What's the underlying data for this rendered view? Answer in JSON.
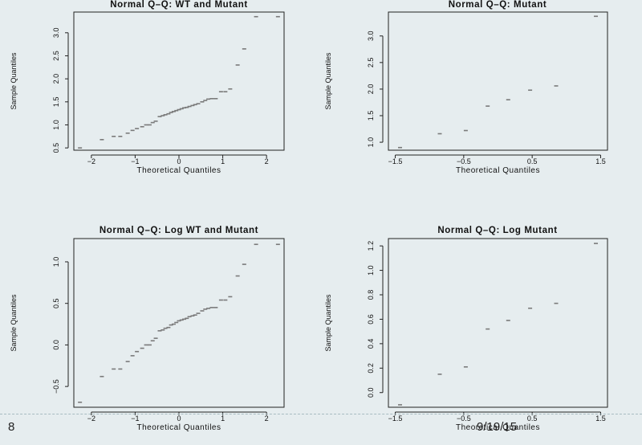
{
  "slide": {
    "number": "8",
    "date": "9/19/15"
  },
  "colors": {
    "background": "#e6edef",
    "point": "#7a7a7a",
    "axis": "#222222"
  },
  "chart_data": [
    {
      "type": "scatter",
      "title": "Normal Q–Q: WT and Mutant",
      "xlabel": "Theoretical Quantiles",
      "ylabel": "Sample Quantiles",
      "xlim": [
        -2.4,
        2.4
      ],
      "ylim": [
        0.45,
        3.45
      ],
      "xticks": [
        -2,
        -1,
        0,
        1,
        2
      ],
      "yticks": [
        0.5,
        1.0,
        1.5,
        2.0,
        2.5,
        3.0
      ],
      "x": [
        -2.26,
        -1.76,
        -1.49,
        -1.34,
        -1.17,
        -1.06,
        -0.96,
        -0.84,
        -0.75,
        -0.67,
        -0.6,
        -0.53,
        -0.44,
        -0.37,
        -0.31,
        -0.24,
        -0.18,
        -0.12,
        -0.06,
        0.0,
        0.06,
        0.12,
        0.18,
        0.24,
        0.31,
        0.37,
        0.44,
        0.53,
        0.6,
        0.67,
        0.75,
        0.84,
        0.96,
        1.06,
        1.17,
        1.34,
        1.49,
        1.76,
        2.26
      ],
      "y": [
        0.5,
        0.68,
        0.75,
        0.75,
        0.82,
        0.88,
        0.92,
        0.96,
        1.0,
        1.0,
        1.05,
        1.08,
        1.18,
        1.2,
        1.22,
        1.24,
        1.27,
        1.29,
        1.31,
        1.33,
        1.35,
        1.37,
        1.38,
        1.4,
        1.42,
        1.44,
        1.46,
        1.5,
        1.53,
        1.56,
        1.57,
        1.57,
        1.72,
        1.72,
        1.78,
        2.3,
        2.65,
        3.35,
        3.35
      ]
    },
    {
      "type": "scatter",
      "title": "Normal Q–Q: Mutant",
      "xlabel": "Theoretical Quantiles",
      "ylabel": "Sample Quantiles",
      "xlim": [
        -1.6,
        1.6
      ],
      "ylim": [
        0.85,
        3.45
      ],
      "xticks": [
        -1.5,
        -0.5,
        0.5,
        1.5
      ],
      "yticks": [
        1.0,
        1.5,
        2.0,
        2.5,
        3.0
      ],
      "x": [
        -1.43,
        -0.85,
        -0.47,
        -0.15,
        0.15,
        0.47,
        0.85,
        1.43
      ],
      "y": [
        0.9,
        1.16,
        1.22,
        1.68,
        1.8,
        1.98,
        2.06,
        3.37
      ]
    },
    {
      "type": "scatter",
      "title": "Normal Q–Q: Log WT and Mutant",
      "xlabel": "Theoretical Quantiles",
      "ylabel": "Sample Quantiles",
      "xlim": [
        -2.4,
        2.4
      ],
      "ylim": [
        -0.75,
        1.28
      ],
      "xticks": [
        -2,
        -1,
        0,
        1,
        2
      ],
      "yticks": [
        -0.5,
        0.0,
        0.5,
        1.0
      ],
      "x": [
        -2.26,
        -1.76,
        -1.49,
        -1.34,
        -1.17,
        -1.06,
        -0.96,
        -0.84,
        -0.75,
        -0.67,
        -0.6,
        -0.53,
        -0.44,
        -0.37,
        -0.31,
        -0.24,
        -0.18,
        -0.12,
        -0.06,
        0.0,
        0.06,
        0.12,
        0.18,
        0.24,
        0.31,
        0.37,
        0.44,
        0.53,
        0.6,
        0.67,
        0.75,
        0.84,
        0.96,
        1.06,
        1.17,
        1.34,
        1.49,
        1.76,
        2.26
      ],
      "y": [
        -0.69,
        -0.38,
        -0.29,
        -0.29,
        -0.2,
        -0.13,
        -0.08,
        -0.04,
        0.0,
        0.0,
        0.05,
        0.08,
        0.17,
        0.18,
        0.2,
        0.21,
        0.24,
        0.25,
        0.27,
        0.29,
        0.3,
        0.31,
        0.32,
        0.34,
        0.35,
        0.36,
        0.38,
        0.41,
        0.43,
        0.44,
        0.45,
        0.45,
        0.54,
        0.54,
        0.58,
        0.83,
        0.97,
        1.21,
        1.21
      ]
    },
    {
      "type": "scatter",
      "title": "Normal Q–Q: Log Mutant",
      "xlabel": "Theoretical Quantiles",
      "ylabel": "Sample Quantiles",
      "xlim": [
        -1.6,
        1.6
      ],
      "ylim": [
        -0.12,
        1.26
      ],
      "xticks": [
        -1.5,
        -0.5,
        0.5,
        1.5
      ],
      "yticks": [
        0.0,
        0.2,
        0.4,
        0.6,
        0.8,
        1.0,
        1.2
      ],
      "x": [
        -1.43,
        -0.85,
        -0.47,
        -0.15,
        0.15,
        0.47,
        0.85,
        1.43
      ],
      "y": [
        -0.1,
        0.15,
        0.21,
        0.52,
        0.59,
        0.69,
        0.73,
        1.22
      ]
    }
  ]
}
